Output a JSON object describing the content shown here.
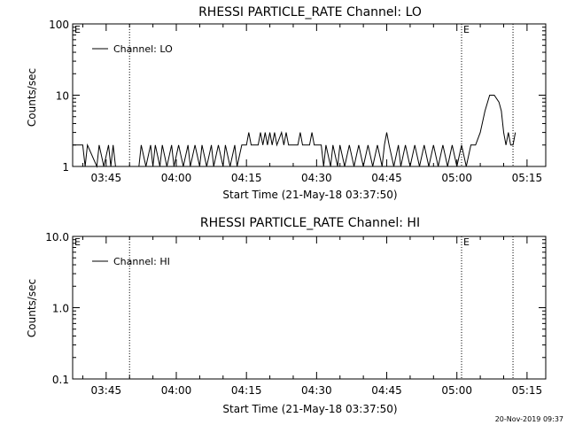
{
  "footer_timestamp": "20-Nov-2019 09:37",
  "chart_data": [
    {
      "type": "line",
      "title": "RHESSI PARTICLE_RATE Channel: LO",
      "ylabel": "Counts/sec",
      "xlabel": "Start Time (21-May-18 03:37:50)",
      "yscale": "log",
      "ylim": [
        1,
        100
      ],
      "ytick_labels": [
        "1",
        "10",
        "100"
      ],
      "xlim": [
        "03:37:50",
        "05:19:00"
      ],
      "xtick_labels": [
        "03:45",
        "04:00",
        "04:15",
        "04:30",
        "04:45",
        "05:00",
        "05:15"
      ],
      "grid": false,
      "legend": {
        "position": "top-left",
        "entries": [
          "Channel: LO"
        ]
      },
      "markers": [
        {
          "time": "03:37:50",
          "label": "E"
        },
        {
          "time": "05:01:00",
          "label": "E"
        }
      ],
      "vertical_lines": [
        "03:50:00",
        "05:01:00",
        "05:12:00"
      ],
      "series": [
        {
          "name": "Channel: LO",
          "points": [
            [
              "03:37:50",
              2
            ],
            [
              "03:40:00",
              2
            ],
            [
              "03:40:30",
              1
            ],
            [
              "03:41:00",
              2
            ],
            [
              "03:43:00",
              1
            ],
            [
              "03:43:30",
              2
            ],
            [
              "03:44:30",
              1
            ],
            [
              "03:45:30",
              2
            ],
            [
              "03:46:00",
              1
            ],
            [
              "03:46:30",
              2
            ],
            [
              "03:47:00",
              1
            ],
            [
              "03:52:00",
              1
            ],
            [
              "03:52:30",
              2
            ],
            [
              "03:53:30",
              1
            ],
            [
              "03:54:30",
              2
            ],
            [
              "03:55:00",
              1
            ],
            [
              "03:55:30",
              2
            ],
            [
              "03:56:30",
              1
            ],
            [
              "03:57:00",
              2
            ],
            [
              "03:58:00",
              1
            ],
            [
              "03:59:00",
              2
            ],
            [
              "03:59:30",
              1
            ],
            [
              "04:00:30",
              2
            ],
            [
              "04:01:30",
              1
            ],
            [
              "04:02:30",
              2
            ],
            [
              "04:03:00",
              1
            ],
            [
              "04:04:00",
              2
            ],
            [
              "04:05:00",
              1
            ],
            [
              "04:05:30",
              2
            ],
            [
              "04:06:30",
              1
            ],
            [
              "04:07:30",
              2
            ],
            [
              "04:08:00",
              1
            ],
            [
              "04:09:00",
              2
            ],
            [
              "04:10:00",
              1
            ],
            [
              "04:10:30",
              2
            ],
            [
              "04:11:30",
              1
            ],
            [
              "04:12:30",
              2
            ],
            [
              "04:13:00",
              1
            ],
            [
              "04:14:00",
              2
            ],
            [
              "04:15:00",
              2
            ],
            [
              "04:15:30",
              3
            ],
            [
              "04:16:00",
              2
            ],
            [
              "04:17:30",
              2
            ],
            [
              "04:18:00",
              3
            ],
            [
              "04:18:30",
              2
            ],
            [
              "04:19:00",
              3
            ],
            [
              "04:19:30",
              2
            ],
            [
              "04:20:00",
              3
            ],
            [
              "04:20:30",
              2
            ],
            [
              "04:21:00",
              3
            ],
            [
              "04:21:30",
              2
            ],
            [
              "04:22:30",
              3
            ],
            [
              "04:23:00",
              2
            ],
            [
              "04:23:30",
              3
            ],
            [
              "04:24:00",
              2
            ],
            [
              "04:26:00",
              2
            ],
            [
              "04:26:30",
              3
            ],
            [
              "04:27:00",
              2
            ],
            [
              "04:28:30",
              2
            ],
            [
              "04:29:00",
              3
            ],
            [
              "04:29:30",
              2
            ],
            [
              "04:31:00",
              2
            ],
            [
              "04:31:30",
              1
            ],
            [
              "04:32:00",
              2
            ],
            [
              "04:33:00",
              1
            ],
            [
              "04:33:30",
              2
            ],
            [
              "04:34:30",
              1
            ],
            [
              "04:35:00",
              2
            ],
            [
              "04:36:00",
              1
            ],
            [
              "04:37:00",
              2
            ],
            [
              "04:38:00",
              1
            ],
            [
              "04:39:00",
              2
            ],
            [
              "04:40:00",
              1
            ],
            [
              "04:41:00",
              2
            ],
            [
              "04:42:00",
              1
            ],
            [
              "04:43:00",
              2
            ],
            [
              "04:44:00",
              1
            ],
            [
              "04:44:30",
              2
            ],
            [
              "04:45:00",
              3
            ],
            [
              "04:45:30",
              2
            ],
            [
              "04:46:30",
              1
            ],
            [
              "04:47:30",
              2
            ],
            [
              "04:48:00",
              1
            ],
            [
              "04:49:00",
              2
            ],
            [
              "04:50:00",
              1
            ],
            [
              "04:51:00",
              2
            ],
            [
              "04:52:00",
              1
            ],
            [
              "04:53:00",
              2
            ],
            [
              "04:54:00",
              1
            ],
            [
              "04:55:00",
              2
            ],
            [
              "04:56:00",
              1
            ],
            [
              "04:57:00",
              2
            ],
            [
              "04:58:00",
              1
            ],
            [
              "04:59:00",
              2
            ],
            [
              "05:00:00",
              1
            ],
            [
              "05:01:00",
              2
            ],
            [
              "05:02:00",
              1
            ],
            [
              "05:03:00",
              2
            ],
            [
              "05:04:00",
              2
            ],
            [
              "05:05:00",
              3
            ],
            [
              "05:06:00",
              6
            ],
            [
              "05:07:00",
              10
            ],
            [
              "05:08:00",
              10
            ],
            [
              "05:09:00",
              8
            ],
            [
              "05:09:30",
              6
            ],
            [
              "05:10:00",
              3
            ],
            [
              "05:10:30",
              2
            ],
            [
              "05:11:00",
              3
            ],
            [
              "05:11:30",
              2
            ],
            [
              "05:12:00",
              2
            ],
            [
              "05:12:30",
              3
            ]
          ]
        }
      ]
    },
    {
      "type": "line",
      "title": "RHESSI PARTICLE_RATE Channel: HI",
      "ylabel": "Counts/sec",
      "xlabel": "Start Time (21-May-18 03:37:50)",
      "yscale": "log",
      "ylim": [
        0.1,
        10
      ],
      "ytick_labels": [
        "0.1",
        "1.0",
        "10.0"
      ],
      "xlim": [
        "03:37:50",
        "05:19:00"
      ],
      "xtick_labels": [
        "03:45",
        "04:00",
        "04:15",
        "04:30",
        "04:45",
        "05:00",
        "05:15"
      ],
      "grid": false,
      "legend": {
        "position": "top-left",
        "entries": [
          "Channel: HI"
        ]
      },
      "markers": [
        {
          "time": "03:37:50",
          "label": "E"
        },
        {
          "time": "05:01:00",
          "label": "E"
        }
      ],
      "vertical_lines": [
        "03:50:00",
        "05:01:00",
        "05:12:00"
      ],
      "series": [
        {
          "name": "Channel: HI",
          "points": []
        }
      ]
    }
  ]
}
